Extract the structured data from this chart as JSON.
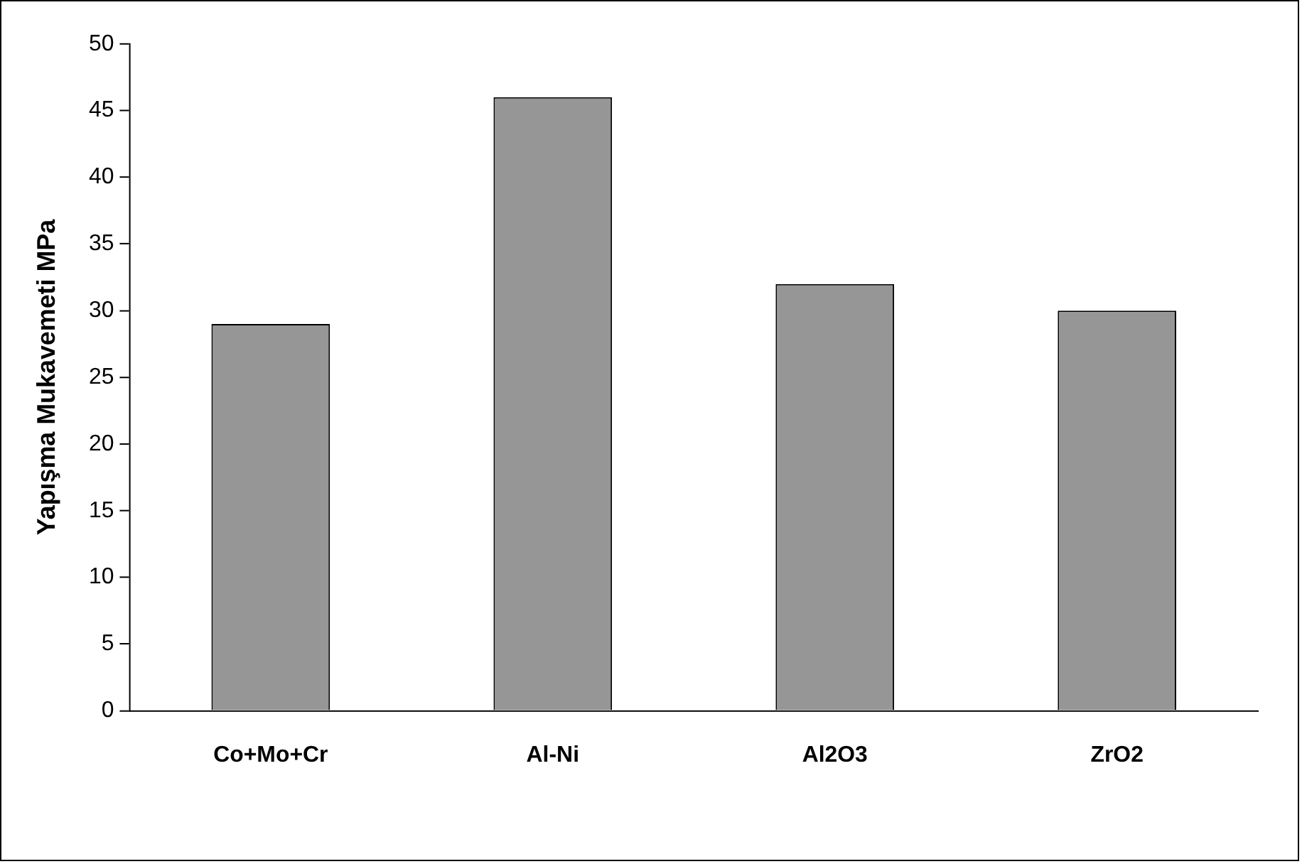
{
  "chart_data": {
    "type": "bar",
    "ylabel": "Yapışma Mukavemeti MPa",
    "categories": [
      "Co+Mo+Cr",
      "Al-Ni",
      "Al2O3",
      "ZrO2"
    ],
    "values": [
      29,
      46,
      32,
      30
    ],
    "color": "#969696",
    "ylim": [
      0,
      50
    ],
    "yticks": [
      0,
      5,
      10,
      15,
      20,
      25,
      30,
      35,
      40,
      45,
      50
    ],
    "grid": false,
    "legend": false
  }
}
